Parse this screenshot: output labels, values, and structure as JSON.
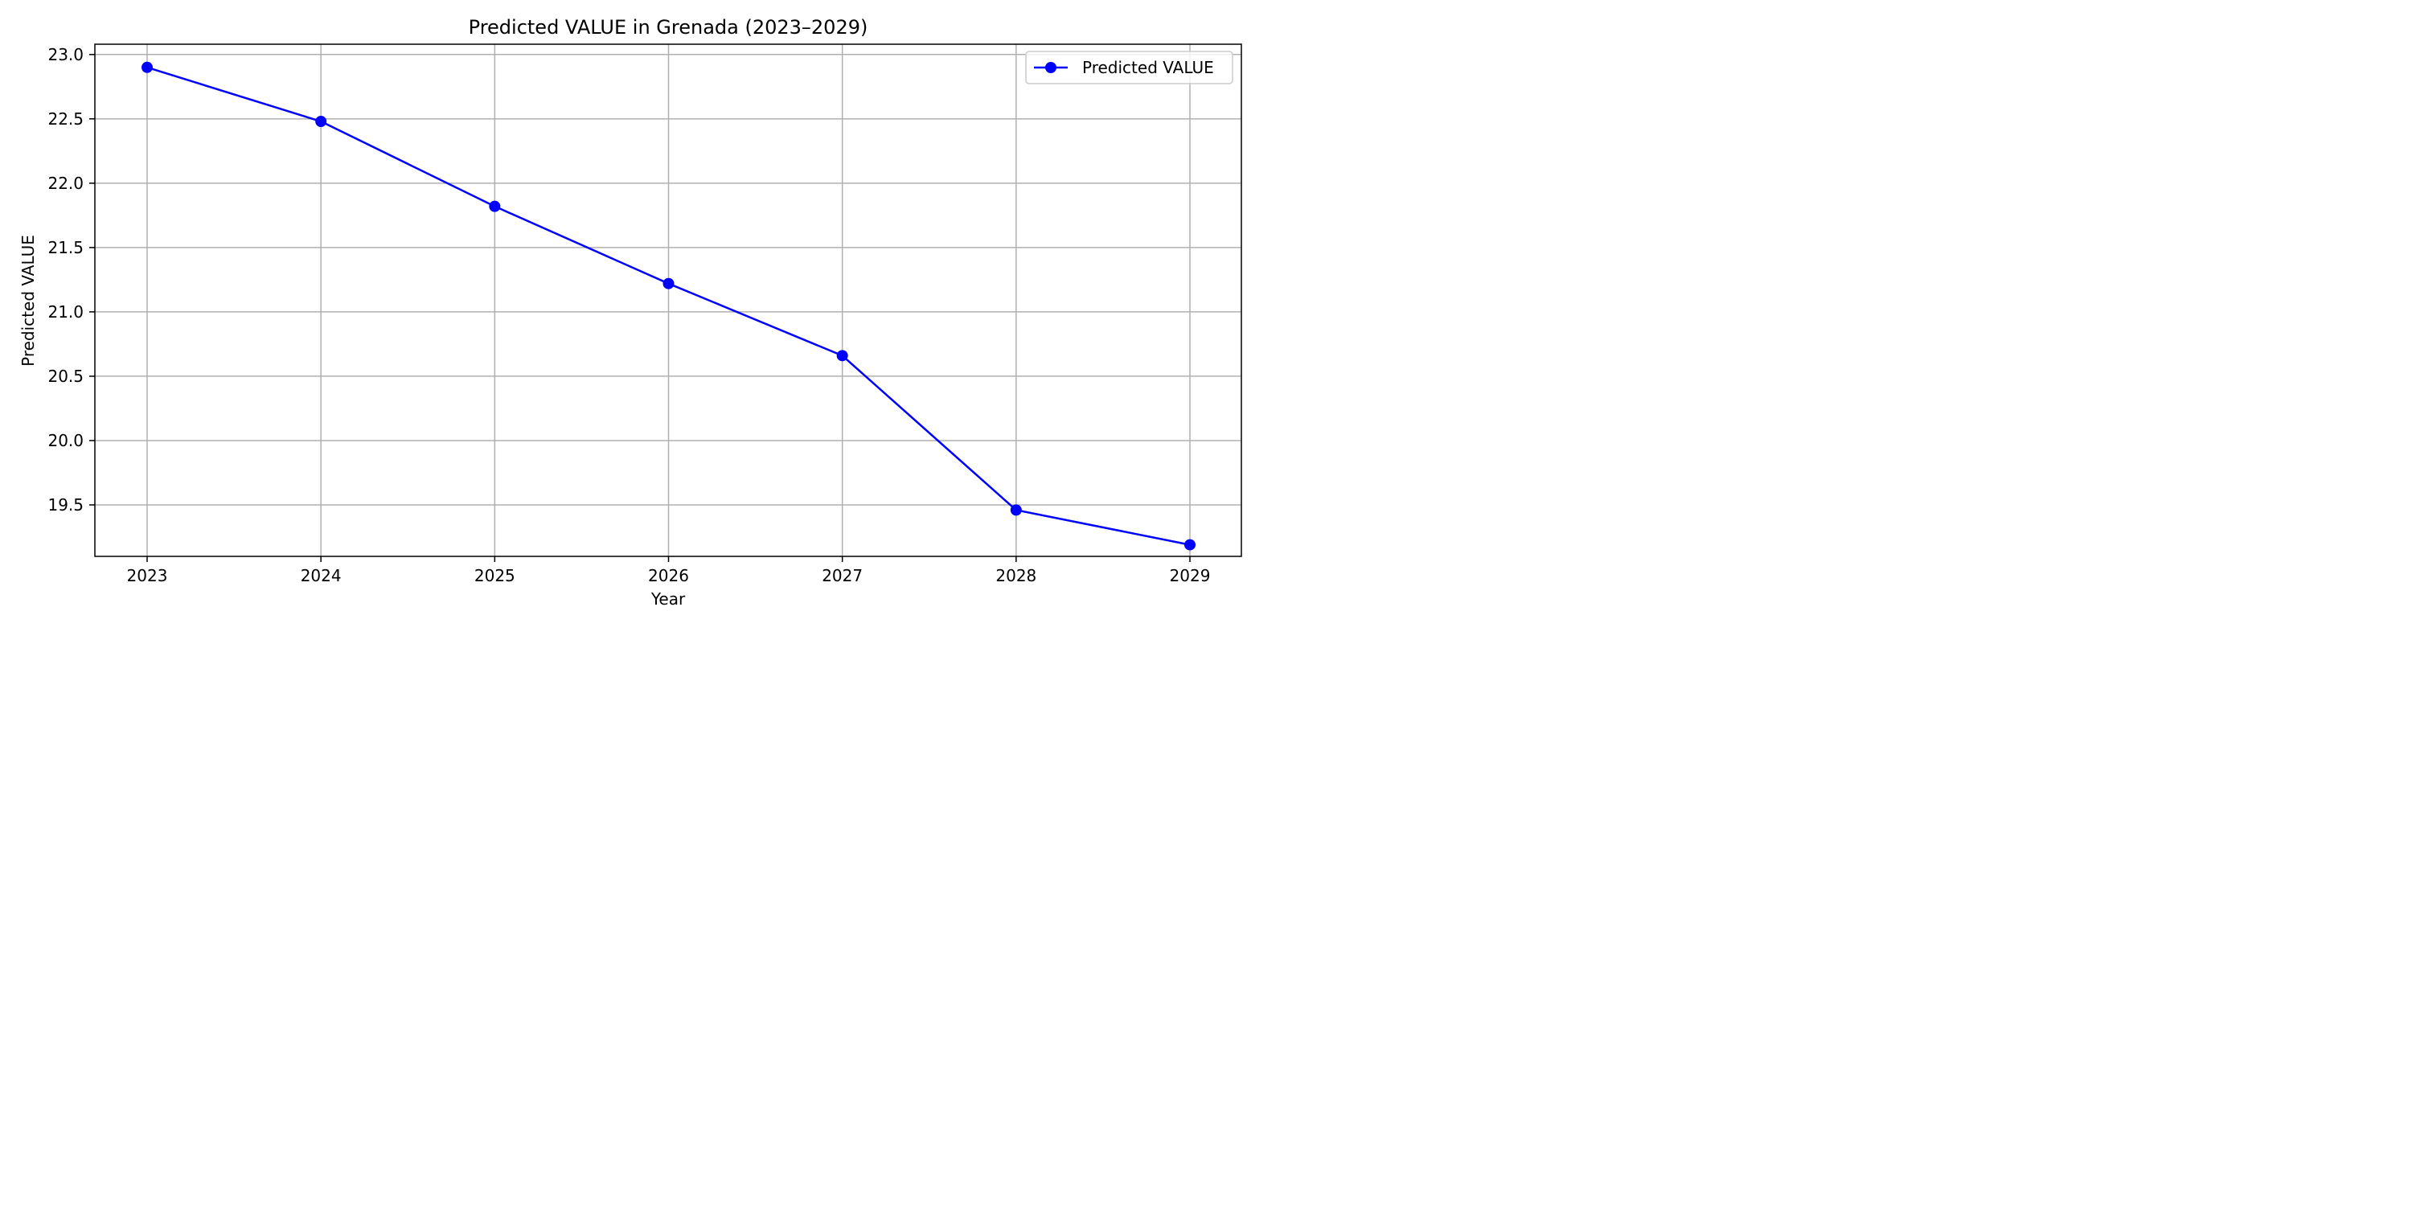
{
  "chart_data": {
    "type": "line",
    "title": "Predicted VALUE in Grenada (2023–2029)",
    "xlabel": "Year",
    "ylabel": "Predicted VALUE",
    "x": [
      "2023",
      "2024",
      "2025",
      "2026",
      "2027",
      "2028",
      "2029"
    ],
    "series": [
      {
        "name": "Predicted VALUE",
        "color": "#0000ff",
        "marker": "circle",
        "values": [
          22.9,
          22.48,
          21.82,
          21.22,
          20.66,
          19.46,
          19.19
        ]
      }
    ],
    "yticks": [
      "19.5",
      "20.0",
      "20.5",
      "21.0",
      "21.5",
      "22.0",
      "22.5",
      "23.0"
    ],
    "ylim": [
      19.1,
      23.08
    ],
    "grid": true,
    "legend_position": "top-right"
  }
}
